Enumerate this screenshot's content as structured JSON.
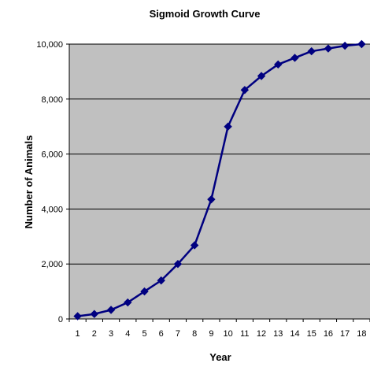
{
  "chart_data": {
    "type": "line",
    "title": "Sigmoid Growth Curve",
    "xlabel": "Year",
    "ylabel": "Number of  Animals",
    "x": [
      1,
      2,
      3,
      4,
      5,
      6,
      7,
      8,
      9,
      10,
      11,
      12,
      13,
      14,
      15,
      16,
      17,
      18
    ],
    "series": [
      {
        "values": [
          100,
          180,
          330,
          600,
          1000,
          1400,
          2000,
          2680,
          4350,
          7000,
          8330,
          8840,
          9260,
          9500,
          9740,
          9840,
          9940,
          10000
        ]
      }
    ],
    "ylim": [
      0,
      10000
    ],
    "yticks": [
      0,
      2000,
      4000,
      6000,
      8000,
      10000
    ],
    "ytick_labels": [
      "0",
      "2,000",
      "4,000",
      "6,000",
      "8,000",
      "10,000"
    ],
    "xtick_labels": [
      "1",
      "2",
      "3",
      "4",
      "5",
      "6",
      "7",
      "8",
      "9",
      "10",
      "11",
      "12",
      "13",
      "14",
      "15",
      "16",
      "17",
      "18"
    ],
    "grid": true,
    "legend": "none",
    "colors": {
      "plot_background": "#C0C0C0",
      "line": "#000080",
      "gridline": "#000000",
      "page_background": "#FFFFFF"
    },
    "marker": "diamond"
  }
}
